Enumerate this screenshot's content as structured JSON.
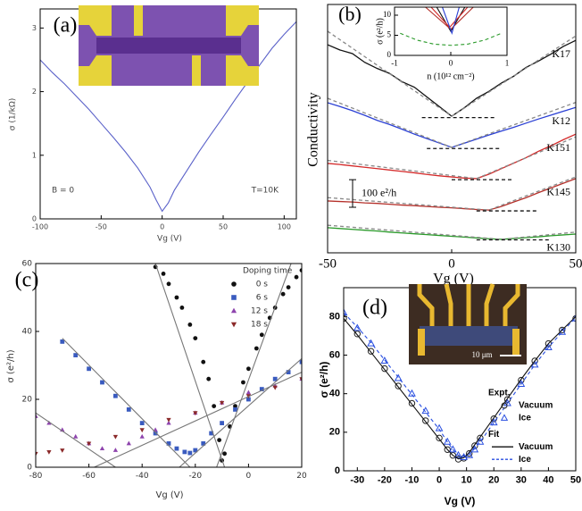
{
  "chart_data": [
    {
      "type": "line",
      "panel_label": "(a)",
      "xlabel": "Vg (V)",
      "ylabel": "σ (1/kΩ)",
      "xlim": [
        -100,
        110
      ],
      "ylim": [
        0,
        3.3
      ],
      "xticks": [
        -100,
        -50,
        0,
        50,
        100
      ],
      "yticks": [
        0,
        1,
        2,
        3
      ],
      "annotations": [
        "B = 0",
        "T=10K"
      ],
      "x": [
        -100,
        -90,
        -80,
        -70,
        -60,
        -50,
        -40,
        -30,
        -20,
        -10,
        -5,
        0,
        5,
        10,
        20,
        30,
        40,
        50,
        60,
        70,
        80,
        90,
        100,
        110
      ],
      "series": [
        {
          "color": "#5b62c9",
          "values": [
            2.5,
            2.3,
            2.12,
            1.92,
            1.72,
            1.5,
            1.28,
            1.05,
            0.8,
            0.5,
            0.3,
            0.12,
            0.25,
            0.45,
            0.75,
            1.05,
            1.33,
            1.6,
            1.88,
            2.15,
            2.42,
            2.68,
            2.9,
            3.1
          ]
        }
      ]
    },
    {
      "type": "line",
      "panel_label": "(b)",
      "xlabel": "Vg (V)",
      "ylabel": "Conductivity",
      "xlim": [
        -50,
        50
      ],
      "ylim": [
        0,
        900
      ],
      "xticks": [
        -50,
        0,
        50
      ],
      "legend": "inline",
      "scale_bar": {
        "value": 100,
        "label": "100 e²/h"
      },
      "x": [
        -50,
        -45,
        -40,
        -35,
        -30,
        -25,
        -20,
        -15,
        -10,
        -5,
        0,
        5,
        10,
        15,
        20,
        25,
        30,
        35,
        40,
        45,
        50
      ],
      "series": [
        {
          "name": "K17",
          "color": "#111111",
          "values": [
            754,
            735,
            722,
            690,
            668,
            650,
            620,
            600,
            565,
            530,
            495,
            525,
            560,
            585,
            615,
            640,
            672,
            695,
            720,
            748,
            770
          ]
        },
        {
          "name": "K12",
          "color": "#2a3fd4",
          "values": [
            544,
            530,
            515,
            498,
            480,
            465,
            448,
            430,
            414,
            398,
            382,
            397,
            412,
            427,
            441,
            455,
            470,
            485,
            499,
            513,
            527
          ]
        },
        {
          "name": "K151",
          "color": "#d42a2a",
          "values": [
            324,
            320,
            315,
            310,
            305,
            300,
            295,
            290,
            284,
            279,
            275,
            271,
            269,
            285,
            305,
            325,
            345,
            368,
            388,
            410,
            430
          ]
        },
        {
          "name": "K145",
          "color": "#b5302a",
          "values": [
            188,
            186,
            184,
            181,
            179,
            176,
            173,
            171,
            168,
            165,
            163,
            160,
            157,
            155,
            168,
            184,
            200,
            218,
            235,
            252,
            269
          ]
        },
        {
          "name": "K130",
          "color": "#2a9a2a",
          "values": [
            91,
            88,
            85,
            82,
            79,
            75,
            72,
            69,
            66,
            63,
            60,
            57,
            54,
            51,
            49,
            52,
            55,
            58,
            62,
            65,
            68
          ]
        },
        {
          "color": "#888888",
          "dash": true,
          "x": [
            -50,
            0,
            50
          ],
          "values": [
            803,
            495,
            786
          ]
        },
        {
          "color": "#888888",
          "dash": true,
          "x": [
            -50,
            0,
            50
          ],
          "values": [
            560,
            382,
            545
          ]
        },
        {
          "color": "#888888",
          "dash": true,
          "x": [
            -50,
            10,
            50
          ],
          "values": [
            335,
            269,
            420
          ]
        },
        {
          "color": "#888888",
          "dash": true,
          "x": [
            -50,
            15,
            50
          ],
          "values": [
            200,
            155,
            275
          ]
        },
        {
          "color": "#888888",
          "dash": true,
          "x": [
            -50,
            20,
            50
          ],
          "values": [
            100,
            49,
            75
          ]
        },
        {
          "color": "#111111",
          "dash": true,
          "x": [
            -12,
            18
          ],
          "values": [
            490,
            490
          ]
        },
        {
          "color": "#111111",
          "dash": true,
          "x": [
            -10,
            20
          ],
          "values": [
            378,
            378
          ]
        },
        {
          "color": "#111111",
          "dash": true,
          "x": [
            0,
            25
          ],
          "values": [
            265,
            265
          ]
        },
        {
          "color": "#111111",
          "dash": true,
          "x": [
            10,
            35
          ],
          "values": [
            152,
            152
          ]
        },
        {
          "color": "#111111",
          "dash": true,
          "x": [
            10,
            40
          ],
          "values": [
            47,
            47
          ]
        }
      ]
    },
    {
      "type": "line",
      "xlabel": "n (10¹² cm⁻²)",
      "ylabel": "σ (e²/h)",
      "xlim": [
        -1,
        1
      ],
      "ylim": [
        0,
        12
      ],
      "xticks": [
        -1,
        0,
        1
      ],
      "yticks": [
        0,
        5,
        10
      ],
      "series": [
        {
          "color": "#111111",
          "x": [
            -0.25,
            0,
            0.25
          ],
          "values": [
            12,
            6,
            12
          ]
        },
        {
          "color": "#d42a2a",
          "x": [
            -0.35,
            -0.02,
            0.3
          ],
          "values": [
            12,
            7,
            12
          ]
        },
        {
          "color": "#b5302a",
          "x": [
            -0.45,
            0,
            0.4
          ],
          "values": [
            12,
            6.5,
            12
          ]
        },
        {
          "color": "#2a3fd4",
          "x": [
            -0.15,
            0.02,
            0.15
          ],
          "values": [
            12,
            5.5,
            12
          ]
        },
        {
          "color": "#2a9a2a",
          "dash": true,
          "x": [
            -0.9,
            -0.6,
            -0.3,
            0,
            0.3,
            0.6,
            0.9
          ],
          "values": [
            5.5,
            3.8,
            2.8,
            2.5,
            2.8,
            3.8,
            5.5
          ]
        }
      ]
    },
    {
      "type": "scatter",
      "panel_label": "(c)",
      "xlabel": "Vg (V)",
      "ylabel": "σ (e²/h)",
      "xlim": [
        -80,
        20
      ],
      "ylim": [
        0,
        60
      ],
      "xticks": [
        -80,
        -60,
        -40,
        -20,
        0,
        20
      ],
      "yticks": [
        0,
        20,
        40,
        60
      ],
      "legend_title": "Doping time",
      "series": [
        {
          "name": "0 s",
          "color": "#111111",
          "marker": "circle",
          "x": [
            -35,
            -32,
            -30,
            -27,
            -25,
            -22,
            -20,
            -17,
            -15,
            -13,
            -11,
            -10,
            -9,
            -7,
            -5,
            -2,
            0,
            3,
            5,
            8,
            10,
            13,
            15,
            18,
            20
          ],
          "values": [
            59,
            57,
            54,
            50,
            47,
            42,
            38,
            31,
            26,
            18,
            8,
            2,
            4,
            12,
            18,
            25,
            29,
            35,
            39,
            44,
            47,
            51,
            53,
            56,
            58
          ]
        },
        {
          "name": "6 s",
          "color": "#3a5bbf",
          "marker": "square",
          "x": [
            -70,
            -65,
            -60,
            -55,
            -50,
            -45,
            -40,
            -35,
            -30,
            -27,
            -24,
            -22,
            -20,
            -17,
            -14,
            -10,
            -5,
            0,
            5,
            10,
            15,
            20
          ],
          "values": [
            37,
            33,
            29,
            25,
            21,
            17,
            13,
            10,
            7,
            5.5,
            4.5,
            4.2,
            5,
            7,
            10,
            13,
            17,
            20,
            23,
            26,
            28,
            31
          ]
        },
        {
          "name": "12 s",
          "color": "#8e44ad",
          "marker": "triangle",
          "x": [
            -80,
            -75,
            -70,
            -65,
            -60,
            -55,
            -50,
            -45,
            -40,
            -35,
            -30,
            -20,
            -10,
            0,
            10,
            20
          ],
          "values": [
            15,
            13,
            11,
            9,
            7,
            5.5,
            5,
            7,
            9,
            11,
            13,
            16,
            19,
            22,
            24,
            26
          ]
        },
        {
          "name": "18 s",
          "color": "#8b2a2a",
          "marker": "triangle-down",
          "x": [
            -80,
            -75,
            -70,
            -60,
            -50,
            -40,
            -30,
            -20,
            -10,
            0,
            10,
            20
          ],
          "values": [
            4,
            4.5,
            5,
            7,
            9,
            11,
            14,
            16,
            19,
            21,
            23.5,
            26
          ]
        },
        {
          "color": "#777777",
          "x": [
            -35,
            -9
          ],
          "values": [
            60,
            0
          ]
        },
        {
          "color": "#777777",
          "x": [
            -12,
            16
          ],
          "values": [
            0,
            60
          ]
        },
        {
          "color": "#777777",
          "x": [
            -70,
            -22
          ],
          "values": [
            38,
            0
          ]
        },
        {
          "color": "#777777",
          "x": [
            -26,
            20
          ],
          "values": [
            0,
            32
          ]
        },
        {
          "color": "#777777",
          "x": [
            -80,
            -50
          ],
          "values": [
            16,
            0
          ]
        },
        {
          "color": "#777777",
          "x": [
            -58,
            20
          ],
          "values": [
            0,
            28
          ]
        }
      ]
    },
    {
      "type": "scatter",
      "panel_label": "(d)",
      "xlabel": "Vg (V)",
      "ylabel": "σ (e²/h)",
      "inset_label": "10 μm",
      "xlim": [
        -35,
        50
      ],
      "ylim": [
        0,
        95
      ],
      "xticks": [
        -30,
        -20,
        -10,
        0,
        10,
        20,
        30,
        40,
        50
      ],
      "yticks": [
        0,
        20,
        40,
        60,
        80
      ],
      "x": [
        -35,
        -30,
        -25,
        -20,
        -15,
        -10,
        -5,
        0,
        3,
        5,
        7,
        9,
        11,
        13,
        15,
        20,
        25,
        30,
        35,
        40,
        45,
        50
      ],
      "series_groups": [
        {
          "title": "Expt.",
          "series": [
            {
              "name": "Vacuum",
              "color": "#222222",
              "marker": "circle",
              "open": true,
              "values": [
                79,
                71,
                62,
                53,
                44,
                35,
                26,
                17,
                11,
                8,
                6,
                6.5,
                9,
                13,
                17,
                27,
                37,
                47,
                57,
                66,
                73,
                79
              ]
            },
            {
              "name": "Ice",
              "color": "#2a4fe0",
              "marker": "triangle",
              "open": true,
              "values": [
                82,
                74,
                66,
                57,
                48,
                40,
                31,
                22,
                15,
                11,
                8,
                7,
                8,
                11,
                15,
                25,
                35,
                45,
                55,
                64,
                72,
                79
              ]
            }
          ]
        },
        {
          "title": "Fit",
          "series": [
            {
              "name": "Vacuum",
              "color": "#111111",
              "values": [
                79,
                70.5,
                61.5,
                52.5,
                43.5,
                34.5,
                25.5,
                16.5,
                11,
                8,
                6.2,
                6.8,
                9.5,
                13.5,
                17.5,
                27.5,
                37.5,
                47.5,
                57,
                66,
                73,
                80
              ]
            },
            {
              "name": "Ice",
              "color": "#2a4fe0",
              "dash": true,
              "values": [
                82,
                74.5,
                66.5,
                57.5,
                48.5,
                39.5,
                30.5,
                21.5,
                15,
                11,
                8,
                7.5,
                8.5,
                11.5,
                15,
                25,
                35,
                45,
                55,
                64,
                72,
                79.5
              ]
            }
          ]
        }
      ]
    }
  ]
}
